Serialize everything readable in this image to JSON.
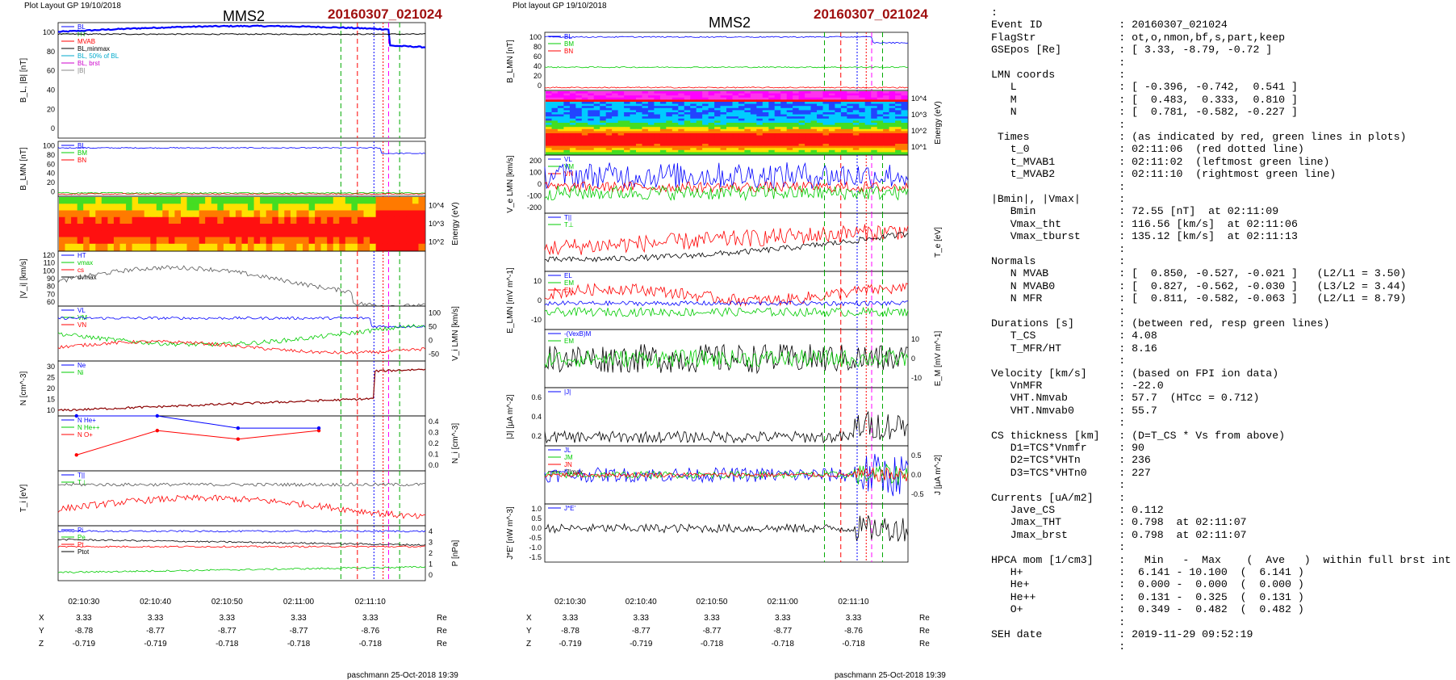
{
  "left": {
    "header": "Plot Layout GP 19/10/2018",
    "spacecraft": "MMS2",
    "event": "20160307_021024",
    "footer": "paschmann 25-Oct-2018 19:39",
    "ephem_labels": [
      "X",
      "Y",
      "Z"
    ],
    "ephem_unit": "Re",
    "ephem": [
      [
        "3.33",
        "3.33",
        "3.33",
        "3.33",
        "3.33"
      ],
      [
        "-8.78",
        "-8.77",
        "-8.77",
        "-8.77",
        "-8.76"
      ],
      [
        "-0.719",
        "-0.719",
        "-0.718",
        "-0.718",
        "-0.718"
      ]
    ]
  },
  "mid": {
    "header": "Plot layout GP 19/10/2018",
    "spacecraft": "MMS2",
    "event": "20160307_021024",
    "footer": "paschmann 25-Oct-2018 19:39",
    "ephem_labels": [
      "X",
      "Y",
      "Z"
    ],
    "ephem_unit": "Re",
    "ephem": [
      [
        "3.33",
        "3.33",
        "3.33",
        "3.33",
        "3.33"
      ],
      [
        "-8.78",
        "-8.77",
        "-8.77",
        "-8.77",
        "-8.76"
      ],
      [
        "-0.719",
        "-0.719",
        "-0.718",
        "-0.718",
        "-0.718"
      ]
    ]
  },
  "time_ticks": [
    "02:10:30",
    "02:10:40",
    "02:10:50",
    "02:11:00",
    "02:11:10"
  ],
  "info_lines": [
    ":",
    "Event ID            : 20160307_021024",
    "FlagStr             : ot,o,nmon,bf,s,part,keep",
    "GSEpos [Re]         : [ 3.33, -8.79, -0.72 ]",
    "                    :",
    "LMN coords          :",
    "   L                : [ -0.396, -0.742,  0.541 ]",
    "   M                : [  0.483,  0.333,  0.810 ]",
    "   N                : [  0.781, -0.582, -0.227 ]",
    "                    :",
    " Times              : (as indicated by red, green lines in plots)",
    "   t_0              : 02:11:06  (red dotted line)",
    "   t_MVAB1          : 02:11:02  (leftmost green line)",
    "   t_MVAB2          : 02:11:10  (rightmost green line)",
    "                    :",
    "|Bmin|, |Vmax|      :",
    "   Bmin             : 72.55 [nT]  at 02:11:09",
    "   Vmax_tht         : 116.56 [km/s]  at 02:11:06",
    "   Vmax_tburst      : 135.12 [km/s]  at 02:11:13",
    "                    :",
    "Normals             :",
    "   N MVAB           : [  0.850, -0.527, -0.021 ]   (L2/L1 = 3.50)",
    "   N MVAB0          : [  0.827, -0.562, -0.030 ]   (L3/L2 = 3.44)",
    "   N MFR            : [  0.811, -0.582, -0.063 ]   (L2/L1 = 8.79)",
    "                    :",
    "Durations [s]       : (between red, resp green lines)",
    "   T_CS             : 4.08",
    "   T_MFR/HT         : 8.16",
    "                    :",
    "Velocity [km/s]     : (based on FPI ion data)",
    "   VnMFR            : -22.0",
    "   VHT.Nmvab        : 57.7  (HTcc = 0.712)",
    "   VHT.Nmvab0       : 55.7",
    "                    :",
    "CS thickness [km]   : (D=T_CS * Vs from above)",
    "   D1=TCS*Vnmfr     : 90",
    "   D2=TCS*VHTn      : 236",
    "   D3=TCS*VHTn0     : 227",
    "                    :",
    "Currents [uA/m2]    :",
    "   Jave_CS          : 0.112",
    "   Jmax_THT         : 0.798  at 02:11:07",
    "   Jmax_brst        : 0.798  at 02:11:07",
    "                    :",
    "HPCA mom [1/cm3]    :   Min   -  Max    (  Ave   )  within full brst int",
    "   H+               :  6.141 - 10.100  (  6.141 )",
    "   He+              :  0.000 -  0.000  (  0.000 )",
    "   He++             :  0.131 -  0.325  (  0.131 )",
    "   O+               :  0.349 -  0.482  (  0.482 )",
    "                    :",
    "SEH date            : 2019-11-29 09:52:19",
    "                    :"
  ],
  "chart_data": [
    {
      "id": "left-stack",
      "type": "line",
      "panels": [
        {
          "ylabel": "B_L, |B| [nT]",
          "ylim": [
            0,
            100
          ],
          "ticks": [
            "0",
            "20",
            "40",
            "60",
            "80",
            "100"
          ],
          "legend": [
            "BL",
            "HT",
            "MVAB",
            "BL,minmax",
            "BL, 50% of BL",
            "BL, brst",
            "|B|"
          ],
          "series": [
            {
              "name": "BL",
              "color": "#0000ff"
            }
          ]
        },
        {
          "ylabel": "B_LMN [nT]",
          "ylim": [
            0,
            100
          ],
          "ticks": [
            "0",
            "20",
            "40",
            "60",
            "80",
            "100"
          ],
          "legend": [
            "BL",
            "BM",
            "BN"
          ],
          "series": [
            {
              "name": "BL",
              "color": "#0000ff"
            },
            {
              "name": "BM",
              "color": "#00cc00"
            },
            {
              "name": "BN",
              "color": "#ff0000"
            }
          ]
        },
        {
          "ylabel": "Energy (eV)",
          "type": "heatmap",
          "ticks": [
            "10^2",
            "10^3",
            "10^4"
          ]
        },
        {
          "ylabel": "|V_i| [km/s]",
          "ylim": [
            60,
            130
          ],
          "ticks": [
            "60",
            "70",
            "80",
            "90",
            "100",
            "110",
            "120"
          ],
          "legend": [
            "HT",
            "vmax",
            "cs",
            "dvmax"
          ]
        },
        {
          "ylabel": "V_i LMN [km/s]",
          "ylim": [
            -70,
            110
          ],
          "ticks": [
            "-50",
            "0",
            "50",
            "100"
          ],
          "legend": [
            "VL",
            "VM",
            "VN"
          ]
        },
        {
          "ylabel": "N [cm^-3]",
          "ylim": [
            5,
            32
          ],
          "ticks": [
            "10",
            "15",
            "20",
            "25",
            "30"
          ],
          "legend": [
            "Ne",
            "Ni"
          ]
        },
        {
          "ylabel": "N_i [cm^-3]",
          "ylim": [
            0,
            0.45
          ],
          "ticks": [
            "0.0",
            "0.1",
            "0.2",
            "0.3",
            "0.4"
          ],
          "legend": [
            "N He+",
            "N He++",
            "N O+"
          ],
          "series": [
            {
              "name": "N He++",
              "color": "#ff0000",
              "x": [
                1,
                2,
                3,
                4
              ],
              "values": [
                0.13,
                0.33,
                0.26,
                0.33
              ]
            },
            {
              "name": "N O+",
              "color": "#0000ff",
              "x": [
                1,
                2,
                3,
                4
              ],
              "values": [
                0.45,
                0.45,
                0.35,
                0.35
              ]
            }
          ]
        },
        {
          "ylabel": "T_i [eV]",
          "legend": [
            "T||",
            "T⊥"
          ]
        },
        {
          "ylabel": "P [nPa]",
          "ylim": [
            0,
            4.5
          ],
          "ticks": [
            "0",
            "1",
            "2",
            "3",
            "4"
          ],
          "legend": [
            "Pi",
            "Pe",
            "Pt",
            "Ptot"
          ]
        }
      ]
    },
    {
      "id": "mid-stack",
      "type": "line",
      "panels": [
        {
          "ylabel": "B_LMN [nT]",
          "ylim": [
            -5,
            100
          ],
          "ticks": [
            "0",
            "20",
            "40",
            "60",
            "80",
            "100"
          ],
          "legend": [
            "BL",
            "BM",
            "BN"
          ]
        },
        {
          "ylabel": "Energy (eV)",
          "type": "heatmap",
          "ticks": [
            "10^1",
            "10^2",
            "10^3",
            "10^4"
          ]
        },
        {
          "ylabel": "V_e LMN [km/s]",
          "ylim": [
            -250,
            280
          ],
          "ticks": [
            "-200",
            "-100",
            "0",
            "100",
            "200"
          ],
          "legend": [
            "VL",
            "VM",
            "VN"
          ]
        },
        {
          "ylabel": "T_e [eV]",
          "legend": [
            "T||",
            "T⊥"
          ]
        },
        {
          "ylabel": "E_LMN [mV m^-1]",
          "ylim": [
            -15,
            15
          ],
          "ticks": [
            "-10",
            "0",
            "10"
          ],
          "legend": [
            "EL",
            "EM",
            "EN"
          ]
        },
        {
          "ylabel": "E_M [mV m^-1]",
          "ylim": [
            -15,
            15
          ],
          "ticks": [
            "-10",
            "0",
            "10"
          ],
          "legend": [
            "-(VexB)M",
            "EM"
          ]
        },
        {
          "ylabel": "|J| [μA m^-2]",
          "ylim": [
            0,
            0.7
          ],
          "ticks": [
            "0.2",
            "0.4",
            "0.6"
          ],
          "legend": [
            "|J|"
          ]
        },
        {
          "ylabel": "J [μA m^-2]",
          "ylim": [
            -0.7,
            0.6
          ],
          "ticks": [
            "-0.5",
            "0.0",
            "0.5"
          ],
          "legend": [
            "JL",
            "JM",
            "JN",
            "|J|max"
          ]
        },
        {
          "ylabel": "J*E' [nW m^-3]",
          "ylim": [
            -1.7,
            1.1
          ],
          "ticks": [
            "-1.5",
            "-1.0",
            "-0.5",
            "0.0",
            "0.5",
            "1.0"
          ],
          "legend": [
            "J*E'"
          ]
        }
      ]
    }
  ]
}
